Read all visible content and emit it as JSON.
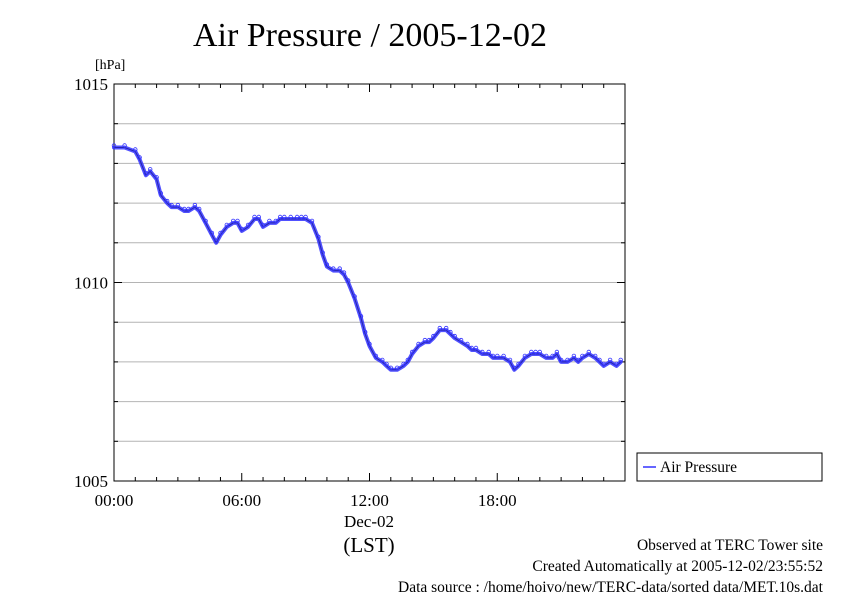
{
  "chart_data": {
    "type": "line",
    "title": "Air Pressure / 2005-12-02",
    "ylabel": "[hPa]",
    "xlabel": "(LST)",
    "x_date_label": "Dec-02",
    "ylim": [
      1005,
      1015
    ],
    "xlim": [
      "00:00",
      "24:00"
    ],
    "y_ticks": [
      "1005",
      "1010",
      "1015"
    ],
    "x_ticks": [
      "00:00",
      "06:00",
      "12:00",
      "18:00"
    ],
    "grid": true,
    "legend_position": "right",
    "series": [
      {
        "name": "Air Pressure",
        "color": "#3333ff",
        "x_hours": [
          0.0,
          0.5,
          1.0,
          1.2,
          1.5,
          1.7,
          2.0,
          2.2,
          2.5,
          2.7,
          3.0,
          3.3,
          3.5,
          3.8,
          4.0,
          4.3,
          4.6,
          4.8,
          5.0,
          5.3,
          5.6,
          5.8,
          6.0,
          6.3,
          6.6,
          6.8,
          7.0,
          7.3,
          7.6,
          7.8,
          8.0,
          8.3,
          8.6,
          8.8,
          9.0,
          9.3,
          9.6,
          9.8,
          10.0,
          10.3,
          10.6,
          10.8,
          11.0,
          11.3,
          11.6,
          11.8,
          12.0,
          12.3,
          12.6,
          12.8,
          13.0,
          13.3,
          13.6,
          13.8,
          14.0,
          14.3,
          14.6,
          14.8,
          15.0,
          15.3,
          15.6,
          15.8,
          16.0,
          16.3,
          16.6,
          16.8,
          17.0,
          17.3,
          17.6,
          17.8,
          18.0,
          18.3,
          18.6,
          18.8,
          19.0,
          19.3,
          19.6,
          19.8,
          20.0,
          20.3,
          20.6,
          20.8,
          21.0,
          21.3,
          21.6,
          21.8,
          22.0,
          22.3,
          22.6,
          22.8,
          23.0,
          23.3,
          23.6,
          23.8
        ],
        "values": [
          1013.4,
          1013.4,
          1013.3,
          1013.1,
          1012.7,
          1012.8,
          1012.6,
          1012.2,
          1012.0,
          1011.9,
          1011.9,
          1011.8,
          1011.8,
          1011.9,
          1011.8,
          1011.5,
          1011.2,
          1011.0,
          1011.2,
          1011.4,
          1011.5,
          1011.5,
          1011.3,
          1011.4,
          1011.6,
          1011.6,
          1011.4,
          1011.5,
          1011.5,
          1011.6,
          1011.6,
          1011.6,
          1011.6,
          1011.6,
          1011.6,
          1011.5,
          1011.1,
          1010.7,
          1010.4,
          1010.3,
          1010.3,
          1010.2,
          1010.0,
          1009.6,
          1009.1,
          1008.7,
          1008.4,
          1008.1,
          1008.0,
          1007.9,
          1007.8,
          1007.8,
          1007.9,
          1008.0,
          1008.2,
          1008.4,
          1008.5,
          1008.5,
          1008.6,
          1008.8,
          1008.8,
          1008.7,
          1008.6,
          1008.5,
          1008.4,
          1008.3,
          1008.3,
          1008.2,
          1008.2,
          1008.1,
          1008.1,
          1008.1,
          1008.0,
          1007.8,
          1007.9,
          1008.1,
          1008.2,
          1008.2,
          1008.2,
          1008.1,
          1008.1,
          1008.2,
          1008.0,
          1008.0,
          1008.1,
          1008.0,
          1008.1,
          1008.2,
          1008.1,
          1008.0,
          1007.9,
          1008.0,
          1007.9,
          1008.0
        ]
      }
    ]
  },
  "footer": {
    "line1": "Observed at TERC Tower site",
    "line2": "Created Automatically at 2005-12-02/23:55:52",
    "line3": "Data source : /home/hoivo/new/TERC-data/sorted  data/MET.10s.dat"
  }
}
